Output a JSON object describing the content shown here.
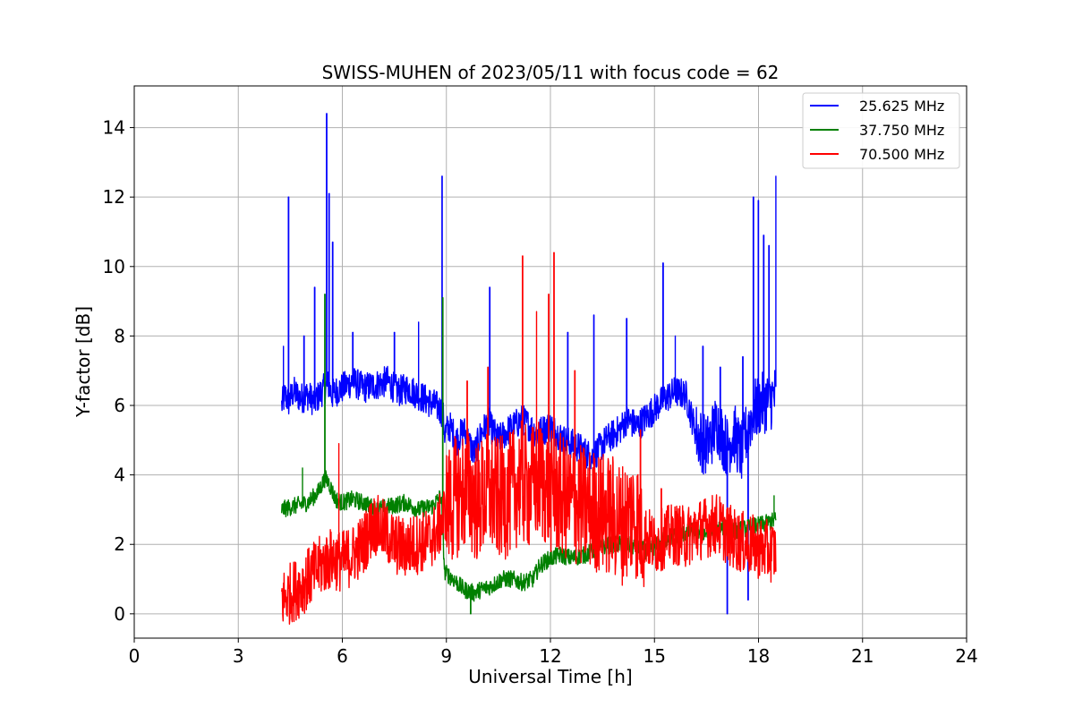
{
  "chart_data": {
    "type": "line",
    "title": "SWISS-MUHEN of 2023/05/11 with focus code = 62",
    "xlabel": "Universal Time [h]",
    "ylabel": "Y-factor [dB]",
    "xlim": [
      0,
      24
    ],
    "ylim": [
      -0.7,
      15.2
    ],
    "xticks": [
      0,
      3,
      6,
      9,
      12,
      15,
      18,
      21,
      24
    ],
    "xtick_labels": [
      "0",
      "3",
      "6",
      "9",
      "12",
      "15",
      "18",
      "21",
      "24"
    ],
    "yticks": [
      0,
      2,
      4,
      6,
      8,
      10,
      12,
      14
    ],
    "ytick_labels": [
      "0",
      "2",
      "4",
      "6",
      "8",
      "10",
      "12",
      "14"
    ],
    "grid": true,
    "legend_position": "top-right",
    "series": [
      {
        "name": "25.625 MHz",
        "color": "#0000ff",
        "x": [
          4.25,
          4.35,
          4.45,
          4.6,
          4.8,
          5.0,
          5.2,
          5.4,
          5.5,
          5.6,
          5.7,
          5.8,
          6.0,
          6.3,
          6.6,
          7.0,
          7.3,
          7.6,
          7.9,
          8.2,
          8.5,
          8.7,
          8.9,
          8.95,
          9.1,
          9.3,
          9.5,
          9.8,
          10.0,
          10.2,
          10.5,
          10.8,
          11.2,
          11.6,
          12.0,
          12.4,
          12.8,
          13.2,
          13.6,
          14.0,
          14.2,
          14.5,
          14.8,
          15.1,
          15.3,
          15.6,
          15.9,
          16.2,
          16.5,
          16.8,
          17.0,
          17.1,
          17.3,
          17.5,
          17.7,
          17.85,
          18.0,
          18.2,
          18.4,
          18.5
        ],
        "y": [
          6.0,
          6.3,
          6.1,
          6.4,
          6.2,
          6.3,
          6.1,
          6.4,
          6.5,
          6.6,
          6.3,
          6.4,
          6.5,
          6.7,
          6.5,
          6.6,
          6.7,
          6.4,
          6.5,
          6.3,
          6.1,
          6.0,
          5.8,
          5.2,
          5.4,
          5.0,
          5.3,
          4.6,
          5.2,
          5.5,
          5.0,
          5.3,
          5.6,
          5.2,
          5.4,
          5.0,
          4.8,
          4.5,
          5.0,
          5.3,
          5.6,
          5.4,
          5.7,
          6.0,
          6.2,
          6.4,
          6.3,
          5.2,
          4.8,
          5.5,
          5.0,
          4.8,
          5.2,
          4.6,
          5.4,
          5.8,
          6.0,
          6.1,
          6.2,
          6.3
        ],
        "spikes": [
          [
            4.3,
            7.7
          ],
          [
            4.45,
            12.0
          ],
          [
            4.9,
            8.0
          ],
          [
            5.2,
            9.4
          ],
          [
            5.55,
            14.4
          ],
          [
            5.62,
            12.1
          ],
          [
            5.72,
            10.7
          ],
          [
            6.3,
            8.1
          ],
          [
            7.5,
            8.1
          ],
          [
            8.2,
            8.4
          ],
          [
            8.88,
            12.6
          ],
          [
            10.25,
            9.4
          ],
          [
            12.5,
            8.1
          ],
          [
            13.25,
            8.6
          ],
          [
            14.2,
            8.5
          ],
          [
            15.25,
            10.1
          ],
          [
            15.6,
            8.0
          ],
          [
            16.4,
            7.7
          ],
          [
            16.9,
            7.1
          ],
          [
            17.1,
            0.0
          ],
          [
            17.55,
            7.4
          ],
          [
            17.7,
            0.4
          ],
          [
            17.85,
            12.0
          ],
          [
            18.0,
            11.9
          ],
          [
            18.15,
            10.9
          ],
          [
            18.3,
            10.6
          ],
          [
            18.5,
            12.6
          ]
        ]
      },
      {
        "name": "37.750 MHz",
        "color": "#008000",
        "x": [
          4.25,
          4.6,
          5.0,
          5.3,
          5.5,
          5.6,
          5.8,
          6.0,
          6.3,
          6.6,
          7.0,
          7.4,
          7.8,
          8.2,
          8.6,
          8.85,
          8.95,
          9.2,
          9.5,
          9.8,
          10.0,
          10.3,
          10.6,
          10.9,
          11.2,
          11.5,
          11.7,
          12.0,
          12.3,
          12.6,
          13.0,
          13.4,
          13.8,
          14.2,
          14.5,
          14.8,
          15.1,
          15.4,
          15.8,
          16.2,
          16.6,
          17.0,
          17.4,
          17.8,
          18.2,
          18.5
        ],
        "y": [
          3.0,
          3.1,
          3.2,
          3.5,
          3.9,
          3.8,
          3.3,
          3.2,
          3.3,
          3.2,
          3.0,
          3.1,
          3.2,
          3.0,
          3.1,
          3.4,
          1.2,
          1.0,
          0.7,
          0.6,
          0.7,
          0.8,
          1.0,
          1.0,
          0.9,
          1.0,
          1.4,
          1.6,
          1.7,
          1.6,
          1.7,
          1.9,
          2.0,
          2.0,
          1.9,
          1.8,
          2.0,
          2.2,
          2.3,
          2.4,
          2.3,
          2.5,
          2.4,
          2.5,
          2.6,
          2.7
        ],
        "spikes": [
          [
            4.85,
            4.2
          ],
          [
            5.5,
            9.2
          ],
          [
            8.9,
            9.1
          ],
          [
            9.7,
            0.0
          ],
          [
            18.45,
            3.4
          ]
        ]
      },
      {
        "name": "70.500 MHz",
        "color": "#ff0000",
        "x": [
          4.25,
          4.5,
          4.8,
          5.1,
          5.4,
          5.7,
          6.0,
          6.3,
          6.6,
          6.9,
          7.2,
          7.5,
          7.8,
          8.1,
          8.4,
          8.7,
          9.0,
          9.3,
          9.6,
          9.9,
          10.2,
          10.5,
          10.8,
          11.1,
          11.4,
          11.7,
          12.0,
          12.3,
          12.6,
          12.9,
          13.2,
          13.5,
          13.8,
          14.1,
          14.4,
          14.7,
          15.0,
          15.3,
          15.6,
          15.9,
          16.2,
          16.5,
          16.8,
          17.1,
          17.4,
          17.7,
          18.0,
          18.3,
          18.5
        ],
        "y": [
          0.4,
          0.6,
          0.8,
          1.1,
          1.4,
          1.6,
          1.5,
          1.7,
          2.0,
          2.6,
          2.4,
          2.0,
          1.9,
          2.0,
          2.1,
          2.3,
          3.0,
          3.4,
          3.6,
          3.2,
          3.5,
          3.3,
          3.4,
          3.8,
          3.6,
          3.9,
          3.5,
          3.4,
          3.2,
          3.1,
          3.0,
          2.9,
          2.8,
          2.6,
          2.9,
          2.3,
          2.0,
          2.2,
          2.3,
          2.2,
          2.4,
          2.5,
          2.6,
          2.3,
          2.1,
          2.0,
          1.9,
          1.8,
          1.8
        ],
        "spikes": [
          [
            5.9,
            4.9
          ],
          [
            9.6,
            6.7
          ],
          [
            10.2,
            7.1
          ],
          [
            11.2,
            10.3
          ],
          [
            11.6,
            8.7
          ],
          [
            11.95,
            9.2
          ],
          [
            12.1,
            10.4
          ],
          [
            12.7,
            7.0
          ],
          [
            14.6,
            5.3
          ],
          [
            15.2,
            3.6
          ]
        ]
      }
    ]
  }
}
